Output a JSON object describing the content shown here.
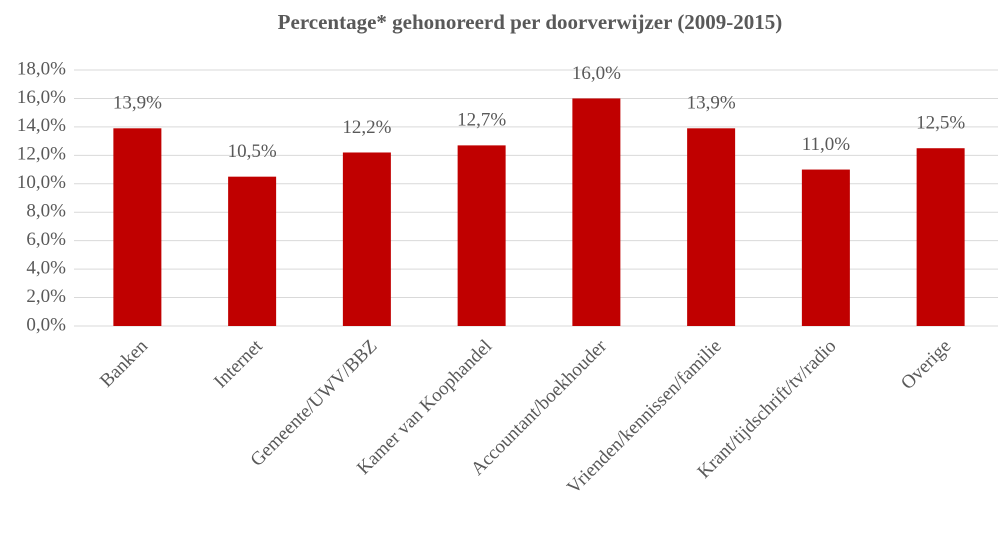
{
  "chart_data": {
    "type": "bar",
    "title": "Percentage* gehonoreerd per doorverwijzer (2009-2015)",
    "categories": [
      "Banken",
      "Internet",
      "Gemeente/UWV/BBZ",
      "Kamer van Koophandel",
      "Accountant/boekhouder",
      "Vrienden/kennissen/familie",
      "Krant/tijdschrift/tv/radio",
      "Overige"
    ],
    "values": [
      13.9,
      10.5,
      12.2,
      12.7,
      16.0,
      13.9,
      11.0,
      12.5
    ],
    "value_labels": [
      "13,9%",
      "10,5%",
      "12,2%",
      "12,7%",
      "16,0%",
      "13,9%",
      "11,0%",
      "12,5%"
    ],
    "color": "#c00000",
    "ylim": [
      0,
      18
    ],
    "yticks": [
      {
        "value": 0,
        "label": "0,0%"
      },
      {
        "value": 2,
        "label": "2,0%"
      },
      {
        "value": 4,
        "label": "4,0%"
      },
      {
        "value": 6,
        "label": "6,0%"
      },
      {
        "value": 8,
        "label": "8,0%"
      },
      {
        "value": 10,
        "label": "10,0%"
      },
      {
        "value": 12,
        "label": "12,0%"
      },
      {
        "value": 14,
        "label": "14,0%"
      },
      {
        "value": 16,
        "label": "16,0%"
      },
      {
        "value": 18,
        "label": "18,0%"
      }
    ],
    "grid": true
  }
}
